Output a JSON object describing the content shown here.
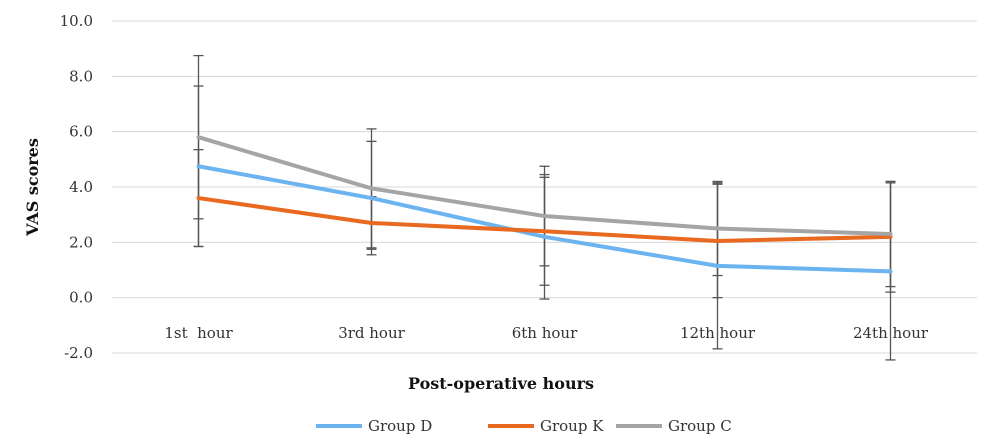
{
  "chart_data": {
    "type": "line",
    "title": "",
    "xlabel": "Post-operative hours",
    "ylabel": "VAS scores",
    "categories": [
      "1st  hour",
      "3rd hour",
      "6th hour",
      "12th hour",
      "24th hour"
    ],
    "ylim": [
      -2.0,
      10.0
    ],
    "yticks": [
      -2.0,
      0.0,
      2.0,
      4.0,
      6.0,
      8.0,
      10.0
    ],
    "grid": true,
    "legend_position": "bottom",
    "series": [
      {
        "name": "Group D",
        "color": "#6cb4f0",
        "values": [
          4.75,
          3.6,
          2.2,
          1.15,
          0.95
        ],
        "error": [
          2.9,
          2.05,
          2.25,
          3.0,
          3.2
        ]
      },
      {
        "name": "Group K",
        "color": "#e8691f",
        "values": [
          3.6,
          2.7,
          2.4,
          2.05,
          2.2
        ],
        "error": [
          1.75,
          0.95,
          1.95,
          2.05,
          2.0
        ]
      },
      {
        "name": "Group C",
        "color": "#a5a5a5",
        "values": [
          5.8,
          3.95,
          2.95,
          2.5,
          2.3
        ],
        "error": [
          2.95,
          2.15,
          1.8,
          1.7,
          1.9
        ]
      }
    ]
  }
}
